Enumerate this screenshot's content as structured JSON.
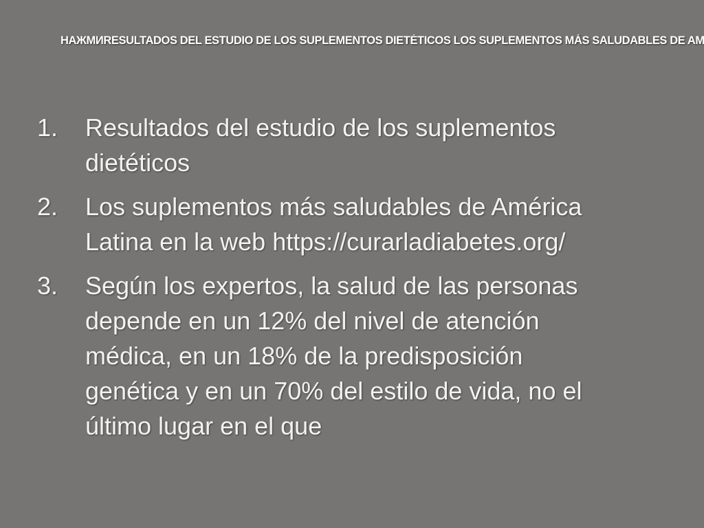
{
  "slide": {
    "title": "НАЖМИRESULTADOS DEL ESTUDIO DE LOS SUPLEMENTOS DIETÉTICOS LOS SUPLEMENTOS MÁS SALUDABLES DE AMÉRICA LATINA EN LA WEB HTTPS://CURARLADIABETES.ORG/",
    "items": [
      {
        "number": "1.",
        "text": "Resultados del estudio de los suplementos dietéticos"
      },
      {
        "number": "2.",
        "text": "Los suplementos más saludables de América Latina en la web https://curarladiabetes.org/"
      },
      {
        "number": "3.",
        "text": "Según los expertos, la salud de las personas depende en un 12% del nivel de atención médica, en un 18% de la predisposición genética y en un 70% del estilo de vida, no el último lugar en el que"
      }
    ]
  }
}
